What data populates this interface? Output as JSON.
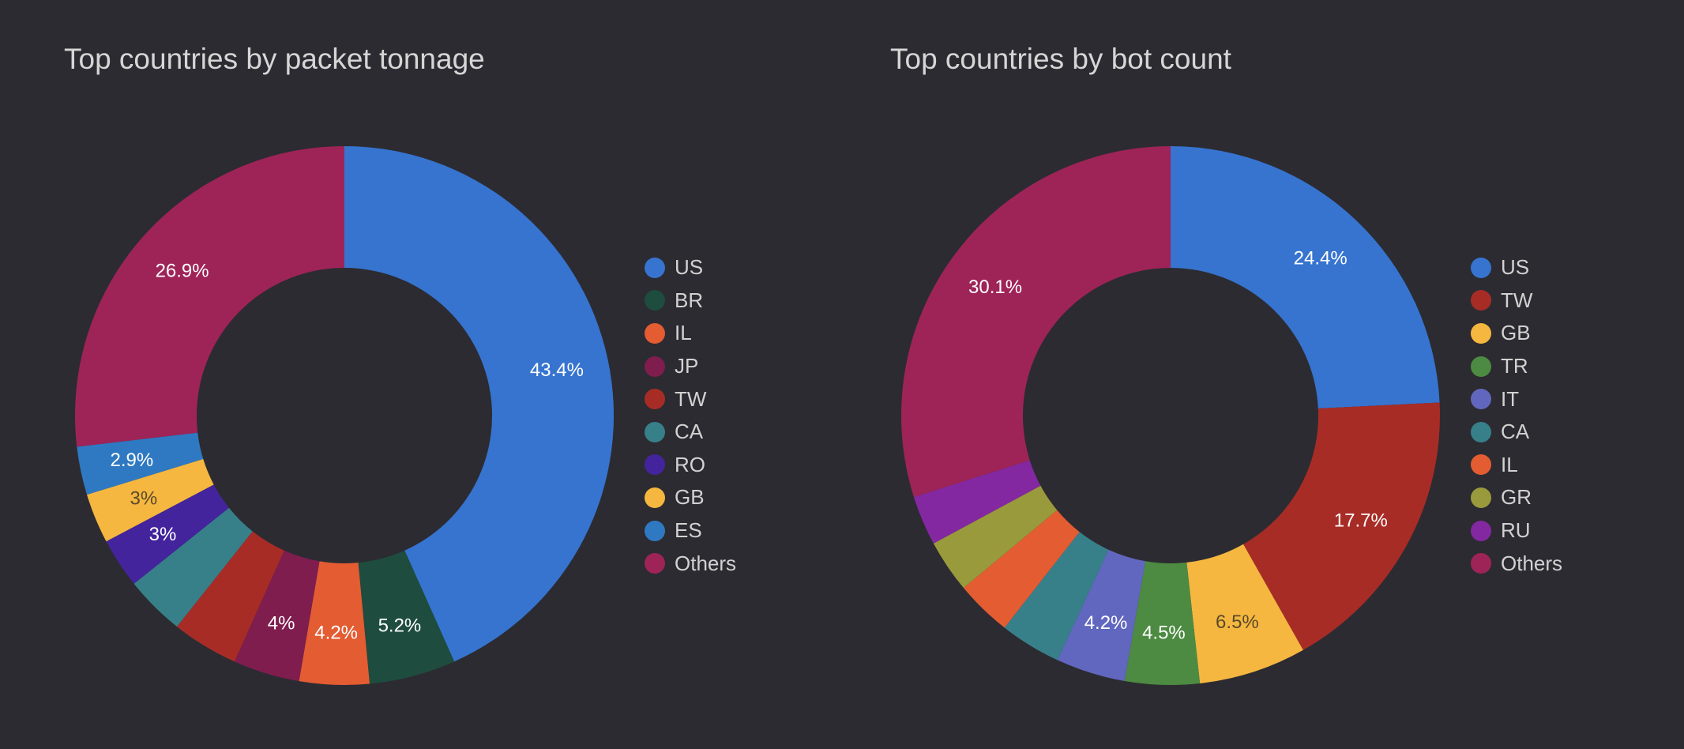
{
  "chart_data": [
    {
      "type": "pie",
      "title": "Top countries by packet tonnage",
      "donut": true,
      "legend_position": "right",
      "slices": [
        {
          "label": "US",
          "value": 43.4,
          "color": "#3674cf",
          "value_label": "43.4%"
        },
        {
          "label": "BR",
          "value": 5.2,
          "color": "#1e4c3e",
          "value_label": "5.2%"
        },
        {
          "label": "IL",
          "value": 4.2,
          "color": "#e35c32",
          "value_label": "4.2%"
        },
        {
          "label": "JP",
          "value": 4.0,
          "color": "#7f1d4f",
          "value_label": "4%"
        },
        {
          "label": "TW",
          "value": 4.0,
          "color": "#a82c26",
          "value_label": ""
        },
        {
          "label": "CA",
          "value": 3.6,
          "color": "#37808a",
          "value_label": ""
        },
        {
          "label": "RO",
          "value": 3.0,
          "color": "#43249c",
          "value_label": "3%"
        },
        {
          "label": "GB",
          "value": 3.0,
          "color": "#f5b740",
          "value_label": "3%"
        },
        {
          "label": "ES",
          "value": 2.9,
          "color": "#2f79c2",
          "value_label": "2.9%"
        },
        {
          "label": "Others",
          "value": 26.9,
          "color": "#9e2458",
          "value_label": "26.9%"
        }
      ]
    },
    {
      "type": "pie",
      "title": "Top countries by bot count",
      "donut": true,
      "legend_position": "right",
      "slices": [
        {
          "label": "US",
          "value": 24.4,
          "color": "#3674cf",
          "value_label": "24.4%"
        },
        {
          "label": "TW",
          "value": 17.7,
          "color": "#a82c26",
          "value_label": "17.7%"
        },
        {
          "label": "GB",
          "value": 6.5,
          "color": "#f5b740",
          "value_label": "6.5%"
        },
        {
          "label": "TR",
          "value": 4.5,
          "color": "#4c8b41",
          "value_label": "4.5%"
        },
        {
          "label": "IT",
          "value": 4.2,
          "color": "#6167be",
          "value_label": "4.2%"
        },
        {
          "label": "CA",
          "value": 3.7,
          "color": "#37808a",
          "value_label": ""
        },
        {
          "label": "IL",
          "value": 3.4,
          "color": "#e35c32",
          "value_label": ""
        },
        {
          "label": "GR",
          "value": 3.2,
          "color": "#999a3b",
          "value_label": ""
        },
        {
          "label": "RU",
          "value": 3.0,
          "color": "#8428a2",
          "value_label": ""
        },
        {
          "label": "Others",
          "value": 30.1,
          "color": "#9e2458",
          "value_label": "30.1%"
        }
      ]
    }
  ]
}
